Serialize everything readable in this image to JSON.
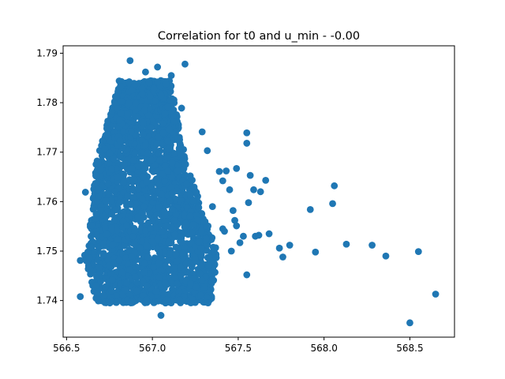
{
  "chart_data": {
    "type": "scatter",
    "title": "Correlation for t0 and u_min - -0.00",
    "xlabel": "",
    "ylabel": "",
    "xlim": [
      566.48,
      568.76
    ],
    "ylim": [
      1.7326,
      1.7915
    ],
    "x_ticks": [
      566.5,
      567.0,
      567.5,
      568.0,
      568.5
    ],
    "x_tick_labels": [
      "566.5",
      "567.0",
      "567.5",
      "568.0",
      "568.5"
    ],
    "y_ticks": [
      1.74,
      1.75,
      1.76,
      1.77,
      1.78,
      1.79
    ],
    "y_tick_labels": [
      "1.74",
      "1.75",
      "1.76",
      "1.77",
      "1.78",
      "1.79"
    ],
    "grid": false,
    "legend": "none",
    "marker_color": "#1f77b4",
    "dense_cluster": {
      "x_range": [
        566.58,
        567.45
      ],
      "y_range": [
        1.7365,
        1.7885
      ],
      "peak_x": 566.95,
      "point_count": 2600
    },
    "points": [
      {
        "x": 566.87,
        "y": 1.7885
      },
      {
        "x": 567.19,
        "y": 1.7878
      },
      {
        "x": 567.03,
        "y": 1.7872
      },
      {
        "x": 566.96,
        "y": 1.7862
      },
      {
        "x": 567.11,
        "y": 1.7855
      },
      {
        "x": 567.03,
        "y": 1.7842
      },
      {
        "x": 567.08,
        "y": 1.7838
      },
      {
        "x": 567.17,
        "y": 1.7789
      },
      {
        "x": 567.29,
        "y": 1.7741
      },
      {
        "x": 567.32,
        "y": 1.7703
      },
      {
        "x": 567.55,
        "y": 1.7739
      },
      {
        "x": 567.55,
        "y": 1.7718
      },
      {
        "x": 567.49,
        "y": 1.7667
      },
      {
        "x": 567.39,
        "y": 1.7661
      },
      {
        "x": 567.43,
        "y": 1.7662
      },
      {
        "x": 567.57,
        "y": 1.7653
      },
      {
        "x": 567.66,
        "y": 1.7643
      },
      {
        "x": 567.41,
        "y": 1.7642
      },
      {
        "x": 567.45,
        "y": 1.7624
      },
      {
        "x": 567.59,
        "y": 1.7624
      },
      {
        "x": 567.63,
        "y": 1.762
      },
      {
        "x": 567.56,
        "y": 1.7598
      },
      {
        "x": 567.47,
        "y": 1.7582
      },
      {
        "x": 567.35,
        "y": 1.759
      },
      {
        "x": 567.48,
        "y": 1.7562
      },
      {
        "x": 567.49,
        "y": 1.7551
      },
      {
        "x": 567.41,
        "y": 1.7545
      },
      {
        "x": 567.42,
        "y": 1.754
      },
      {
        "x": 567.53,
        "y": 1.753
      },
      {
        "x": 567.6,
        "y": 1.753
      },
      {
        "x": 567.62,
        "y": 1.7532
      },
      {
        "x": 567.68,
        "y": 1.7535
      },
      {
        "x": 567.51,
        "y": 1.7517
      },
      {
        "x": 567.46,
        "y": 1.75
      },
      {
        "x": 567.74,
        "y": 1.7506
      },
      {
        "x": 567.8,
        "y": 1.7512
      },
      {
        "x": 567.76,
        "y": 1.7488
      },
      {
        "x": 567.55,
        "y": 1.7452
      },
      {
        "x": 567.92,
        "y": 1.7584
      },
      {
        "x": 568.05,
        "y": 1.7596
      },
      {
        "x": 568.06,
        "y": 1.7632
      },
      {
        "x": 567.95,
        "y": 1.7498
      },
      {
        "x": 568.13,
        "y": 1.7514
      },
      {
        "x": 568.28,
        "y": 1.7512
      },
      {
        "x": 568.36,
        "y": 1.749
      },
      {
        "x": 568.55,
        "y": 1.7499
      },
      {
        "x": 568.65,
        "y": 1.7413
      },
      {
        "x": 568.5,
        "y": 1.7355
      },
      {
        "x": 567.05,
        "y": 1.737
      },
      {
        "x": 566.79,
        "y": 1.7396
      },
      {
        "x": 566.58,
        "y": 1.7408
      },
      {
        "x": 566.58,
        "y": 1.7481
      },
      {
        "x": 566.61,
        "y": 1.7619
      }
    ]
  }
}
